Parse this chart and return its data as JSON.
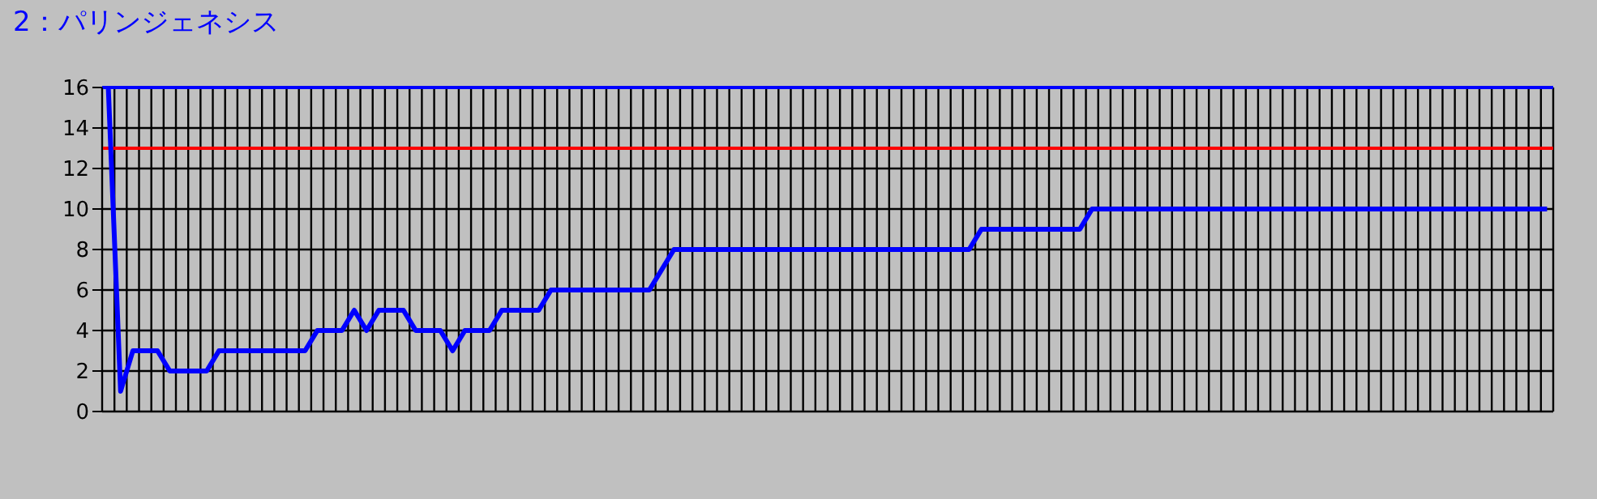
{
  "chart_data": {
    "type": "line",
    "title": "2：パリンジェネシス",
    "categories": [
      null,
      null,
      null,
      null,
      null,
      null,
      null,
      null,
      null,
      null,
      null,
      null,
      null,
      null,
      null,
      null,
      null,
      null,
      null,
      null,
      null,
      null,
      null,
      null,
      null,
      null,
      null,
      null,
      null,
      null,
      null,
      null,
      null,
      null,
      null,
      null,
      null,
      null,
      null,
      null,
      null,
      null,
      null,
      null,
      null,
      null,
      null,
      null,
      null,
      null,
      null,
      null,
      null,
      null,
      null,
      null,
      null,
      null,
      null,
      null,
      null,
      null,
      null,
      null,
      null,
      null,
      null,
      null,
      null,
      null,
      null,
      null,
      null,
      null,
      null,
      null,
      null,
      null,
      null,
      null,
      null,
      null,
      null,
      null,
      null,
      null,
      null,
      null,
      null,
      null,
      null,
      null,
      null,
      null,
      null,
      null,
      null,
      null,
      null,
      null,
      null,
      null,
      null,
      null,
      null,
      null,
      null,
      null,
      null,
      null,
      null,
      null,
      null,
      null,
      null,
      null,
      null,
      null
    ],
    "series": [
      {
        "color": "#0000ff",
        "values": [
          16,
          1,
          3,
          3,
          3,
          2,
          2,
          2,
          2,
          3,
          3,
          3,
          3,
          3,
          3,
          3,
          3,
          4,
          4,
          4,
          5,
          4,
          5,
          5,
          5,
          4,
          4,
          4,
          3,
          4,
          4,
          4,
          5,
          5,
          5,
          5,
          6,
          6,
          6,
          6,
          6,
          6,
          6,
          6,
          6,
          7,
          8,
          8,
          8,
          8,
          8,
          8,
          8,
          8,
          8,
          8,
          8,
          8,
          8,
          8,
          8,
          8,
          8,
          8,
          8,
          8,
          8,
          8,
          8,
          8,
          8,
          9,
          9,
          9,
          9,
          9,
          9,
          9,
          9,
          9,
          10,
          10,
          10,
          10,
          10,
          10,
          10,
          10,
          10,
          10,
          10,
          10,
          10,
          10,
          10,
          10,
          10,
          10,
          10,
          10,
          10,
          10,
          10,
          10,
          10,
          10,
          10,
          10,
          10,
          10,
          10,
          10,
          10,
          10,
          10,
          10,
          10,
          10
        ]
      }
    ],
    "ref_lines": [
      {
        "axis": "y",
        "value": 16,
        "color": "#0000ff"
      },
      {
        "axis": "y",
        "value": 13,
        "color": "#ff0000"
      }
    ],
    "ylim": [
      0,
      16
    ],
    "yticks": [
      0,
      2,
      4,
      6,
      8,
      10,
      12,
      14,
      16
    ],
    "grid": true,
    "marker": "none",
    "line_style": "solid"
  }
}
